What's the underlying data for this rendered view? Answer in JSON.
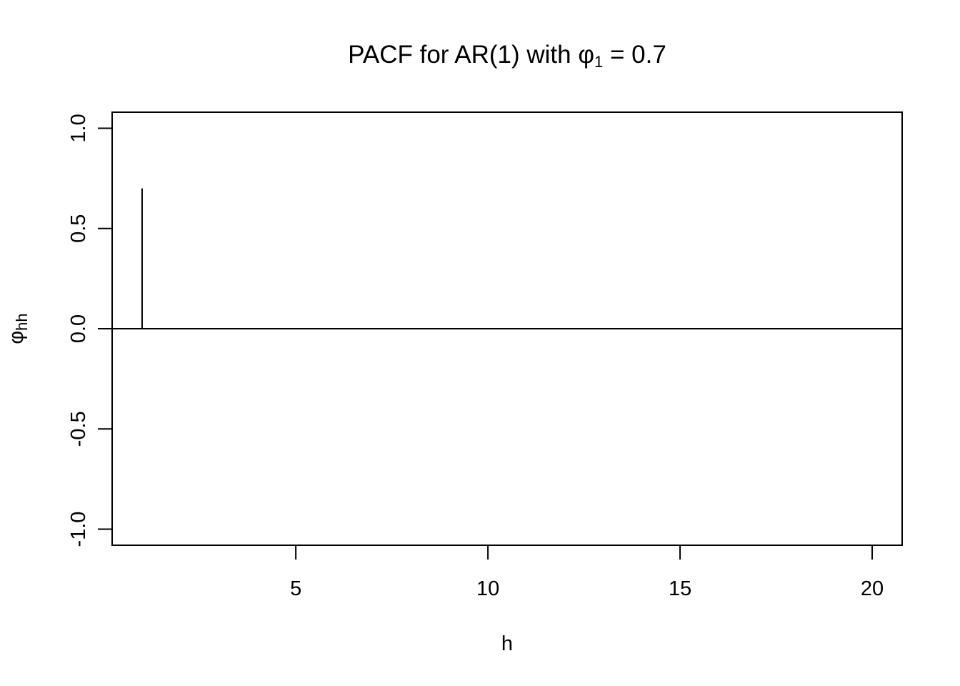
{
  "chart_data": {
    "type": "bar",
    "title": {
      "prefix": "PACF for AR(1) with ",
      "symbol": "φ",
      "subscript": "1",
      "suffix": " = 0.7"
    },
    "xlabel": "h",
    "ylabel": {
      "symbol": "φ",
      "subscript": "hh"
    },
    "xlim": [
      0.22,
      20.78
    ],
    "ylim": [
      -1.08,
      1.08
    ],
    "x_ticks": [
      5,
      10,
      15,
      20
    ],
    "y_ticks": [
      -1.0,
      -0.5,
      0.0,
      0.5,
      1.0
    ],
    "x_tick_labels": [
      "5",
      "10",
      "15",
      "20"
    ],
    "y_tick_labels": [
      "-1.0",
      "-0.5",
      "0.0",
      "0.5",
      "1.0"
    ],
    "reference_line": 0,
    "grid": false,
    "x": [
      1,
      2,
      3,
      4,
      5,
      6,
      7,
      8,
      9,
      10,
      11,
      12,
      13,
      14,
      15,
      16,
      17,
      18,
      19,
      20
    ],
    "values": [
      0.7,
      0,
      0,
      0,
      0,
      0,
      0,
      0,
      0,
      0,
      0,
      0,
      0,
      0,
      0,
      0,
      0,
      0,
      0,
      0
    ]
  }
}
